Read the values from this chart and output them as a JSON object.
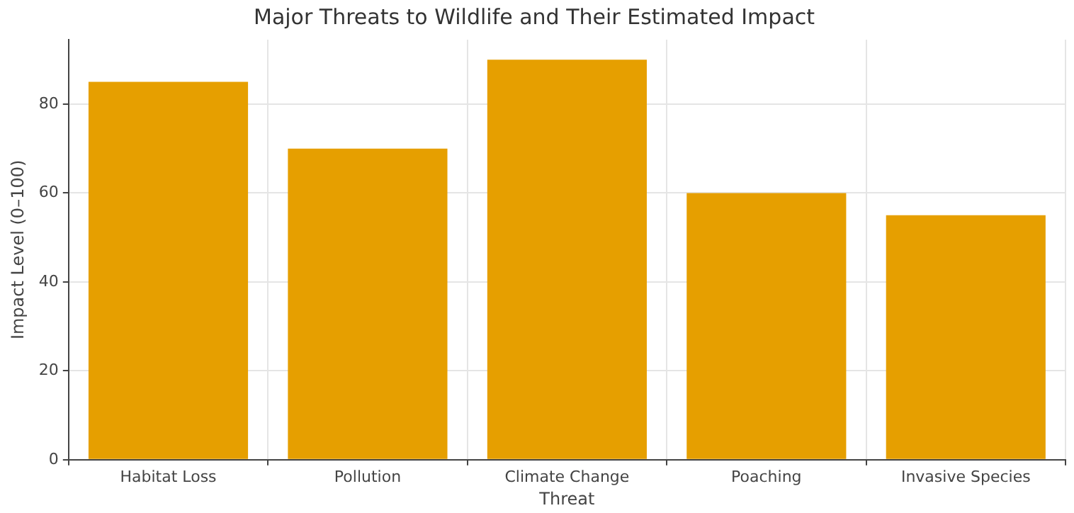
{
  "chart_data": {
    "type": "bar",
    "title": "Major Threats to Wildlife and Their Estimated Impact",
    "xlabel": "Threat",
    "ylabel": "Impact Level (0–100)",
    "categories": [
      "Habitat Loss",
      "Pollution",
      "Climate Change",
      "Poaching",
      "Invasive Species"
    ],
    "values": [
      85,
      70,
      90,
      60,
      55
    ],
    "color": "#e69f00",
    "ylim": [
      0,
      94.5
    ],
    "yticks": [
      0,
      20,
      40,
      60,
      80
    ],
    "grid": true,
    "legend": false
  }
}
